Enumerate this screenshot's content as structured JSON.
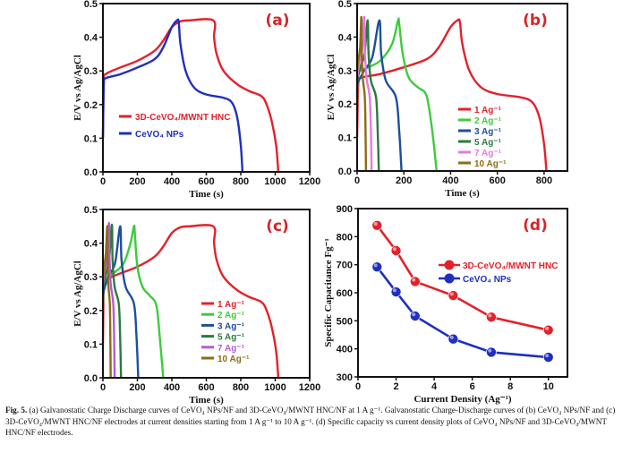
{
  "chart_data": [
    {
      "panel": "(a)",
      "type": "line",
      "xlabel": "Time (s)",
      "ylabel": "E/V vs Ag/AgCl",
      "xlim": [
        0,
        1200
      ],
      "ylim": [
        0,
        0.5
      ],
      "xticks": [
        0,
        200,
        400,
        600,
        800,
        1000,
        1200
      ],
      "yticks": [
        "0.0",
        "0.1",
        "0.2",
        "0.3",
        "0.4",
        "0.5"
      ],
      "legend": "center-left",
      "series": [
        {
          "name": "3D-CeVO₄/MWNT HNC",
          "color": "#e3212b",
          "points": [
            [
              0,
              0.1
            ],
            [
              5,
              0.27
            ],
            [
              15,
              0.29
            ],
            [
              100,
              0.31
            ],
            [
              200,
              0.33
            ],
            [
              300,
              0.36
            ],
            [
              350,
              0.39
            ],
            [
              400,
              0.43
            ],
            [
              450,
              0.447
            ],
            [
              500,
              0.45
            ],
            [
              640,
              0.45
            ],
            [
              645,
              0.4
            ],
            [
              660,
              0.35
            ],
            [
              700,
              0.3
            ],
            [
              780,
              0.26
            ],
            [
              850,
              0.24
            ],
            [
              920,
              0.225
            ],
            [
              950,
              0.2
            ],
            [
              980,
              0.15
            ],
            [
              1005,
              0.08
            ],
            [
              1018,
              0
            ]
          ]
        },
        {
          "name": "CeVO₄ NPs",
          "color": "#1f2fbf",
          "points": [
            [
              0,
              0.1
            ],
            [
              5,
              0.26
            ],
            [
              15,
              0.278
            ],
            [
              100,
              0.29
            ],
            [
              200,
              0.31
            ],
            [
              300,
              0.335
            ],
            [
              350,
              0.37
            ],
            [
              400,
              0.43
            ],
            [
              430,
              0.45
            ],
            [
              440,
              0.445
            ],
            [
              450,
              0.38
            ],
            [
              480,
              0.3
            ],
            [
              530,
              0.25
            ],
            [
              600,
              0.23
            ],
            [
              700,
              0.22
            ],
            [
              750,
              0.205
            ],
            [
              780,
              0.16
            ],
            [
              800,
              0.08
            ],
            [
              810,
              0
            ]
          ]
        }
      ]
    },
    {
      "panel": "(b)",
      "type": "line",
      "xlabel": "Time (s)",
      "ylabel": "E/V vs Ag/AgCl",
      "xlim": [
        0,
        900
      ],
      "ylim": [
        0,
        0.5
      ],
      "xticks": [
        0,
        200,
        400,
        600,
        800
      ],
      "yticks": [
        "0.0",
        "0.1",
        "0.2",
        "0.3",
        "0.4",
        "0.5"
      ],
      "legend": "bottom-right",
      "series": [
        {
          "name": "1 Ag⁻¹",
          "color": "#e3212b",
          "points": [
            [
              0,
              0.1
            ],
            [
              5,
              0.26
            ],
            [
              15,
              0.278
            ],
            [
              100,
              0.29
            ],
            [
              200,
              0.31
            ],
            [
              300,
              0.335
            ],
            [
              350,
              0.37
            ],
            [
              400,
              0.43
            ],
            [
              430,
              0.45
            ],
            [
              440,
              0.445
            ],
            [
              450,
              0.38
            ],
            [
              480,
              0.3
            ],
            [
              530,
              0.25
            ],
            [
              600,
              0.23
            ],
            [
              700,
              0.22
            ],
            [
              750,
              0.205
            ],
            [
              780,
              0.16
            ],
            [
              800,
              0.08
            ],
            [
              810,
              0
            ]
          ]
        },
        {
          "name": "2 Ag⁻¹",
          "color": "#3ccc3c",
          "points": [
            [
              0,
              0.2
            ],
            [
              5,
              0.29
            ],
            [
              50,
              0.31
            ],
            [
              100,
              0.33
            ],
            [
              150,
              0.38
            ],
            [
              175,
              0.45
            ],
            [
              180,
              0.44
            ],
            [
              195,
              0.35
            ],
            [
              220,
              0.28
            ],
            [
              260,
              0.25
            ],
            [
              290,
              0.235
            ],
            [
              305,
              0.2
            ],
            [
              325,
              0.1
            ],
            [
              340,
              0
            ]
          ]
        },
        {
          "name": "3 Ag⁻¹",
          "color": "#1d4f9c",
          "points": [
            [
              0,
              0.26
            ],
            [
              30,
              0.3
            ],
            [
              65,
              0.34
            ],
            [
              95,
              0.45
            ],
            [
              103,
              0.35
            ],
            [
              123,
              0.27
            ],
            [
              166,
              0.22
            ],
            [
              180,
              0.12
            ],
            [
              190,
              0
            ]
          ]
        },
        {
          "name": "5 Ag⁻¹",
          "color": "#2b7a40",
          "points": [
            [
              0,
              0.27
            ],
            [
              14,
              0.31
            ],
            [
              32,
              0.35
            ],
            [
              45,
              0.45
            ],
            [
              49,
              0.35
            ],
            [
              59,
              0.27
            ],
            [
              81,
              0.22
            ],
            [
              88,
              0.12
            ],
            [
              93,
              0
            ]
          ]
        },
        {
          "name": "7 Ag⁻¹",
          "color": "#e47ae4",
          "points": [
            [
              0,
              0.28
            ],
            [
              9,
              0.32
            ],
            [
              21,
              0.36
            ],
            [
              30,
              0.46
            ],
            [
              33,
              0.36
            ],
            [
              40,
              0.28
            ],
            [
              54,
              0.22
            ],
            [
              59,
              0.12
            ],
            [
              62,
              0
            ]
          ]
        },
        {
          "name": "10 Ag⁻¹",
          "color": "#8c6c14",
          "points": [
            [
              0,
              0.3
            ],
            [
              5,
              0.33
            ],
            [
              13,
              0.37
            ],
            [
              18,
              0.46
            ],
            [
              20,
              0.36
            ],
            [
              24,
              0.28
            ],
            [
              33,
              0.22
            ],
            [
              36,
              0.12
            ],
            [
              38,
              0
            ]
          ]
        }
      ]
    },
    {
      "panel": "(c)",
      "type": "line",
      "xlabel": "Time (s)",
      "ylabel": "E/V vs Ag/AgCl",
      "xlim": [
        0,
        1200
      ],
      "ylim": [
        0,
        0.5
      ],
      "xticks": [
        0,
        200,
        400,
        600,
        800,
        1000,
        1200
      ],
      "yticks": [
        "0.0",
        "0.1",
        "0.2",
        "0.3",
        "0.4",
        "0.5"
      ],
      "legend": "center-right",
      "series": [
        {
          "name": "1 Ag⁻¹",
          "color": "#e3212b",
          "points": [
            [
              0,
              0.1
            ],
            [
              5,
              0.27
            ],
            [
              15,
              0.29
            ],
            [
              100,
              0.31
            ],
            [
              200,
              0.33
            ],
            [
              300,
              0.36
            ],
            [
              350,
              0.39
            ],
            [
              400,
              0.43
            ],
            [
              450,
              0.447
            ],
            [
              500,
              0.45
            ],
            [
              640,
              0.45
            ],
            [
              645,
              0.4
            ],
            [
              660,
              0.35
            ],
            [
              700,
              0.3
            ],
            [
              780,
              0.26
            ],
            [
              850,
              0.24
            ],
            [
              920,
              0.225
            ],
            [
              950,
              0.2
            ],
            [
              980,
              0.15
            ],
            [
              1005,
              0.08
            ],
            [
              1018,
              0
            ]
          ]
        },
        {
          "name": "2 Ag⁻¹",
          "color": "#3ccc3c",
          "points": [
            [
              0,
              0.22
            ],
            [
              10,
              0.29
            ],
            [
              60,
              0.31
            ],
            [
              120,
              0.34
            ],
            [
              160,
              0.4
            ],
            [
              180,
              0.45
            ],
            [
              185,
              0.43
            ],
            [
              200,
              0.33
            ],
            [
              230,
              0.27
            ],
            [
              270,
              0.245
            ],
            [
              310,
              0.215
            ],
            [
              330,
              0.12
            ],
            [
              350,
              0
            ]
          ]
        },
        {
          "name": "3 Ag⁻¹",
          "color": "#1d4f9c",
          "points": [
            [
              0,
              0.25
            ],
            [
              30,
              0.3
            ],
            [
              70,
              0.34
            ],
            [
              100,
              0.45
            ],
            [
              108,
              0.35
            ],
            [
              132,
              0.27
            ],
            [
              180,
              0.22
            ],
            [
              195,
              0.12
            ],
            [
              205,
              0
            ]
          ]
        },
        {
          "name": "5 Ag⁻¹",
          "color": "#2b7a40",
          "points": [
            [
              0,
              0.27
            ],
            [
              16,
              0.31
            ],
            [
              36,
              0.35
            ],
            [
              52,
              0.455
            ],
            [
              56,
              0.35
            ],
            [
              68,
              0.27
            ],
            [
              92,
              0.22
            ],
            [
              100,
              0.12
            ],
            [
              105,
              0
            ]
          ]
        },
        {
          "name": "7 Ag⁻¹",
          "color": "#b45ad8",
          "points": [
            [
              0,
              0.28
            ],
            [
              10,
              0.32
            ],
            [
              25,
              0.36
            ],
            [
              35,
              0.46
            ],
            [
              38,
              0.36
            ],
            [
              45,
              0.28
            ],
            [
              60,
              0.22
            ],
            [
              65,
              0.12
            ],
            [
              68,
              0
            ]
          ]
        },
        {
          "name": "10 Ag⁻¹",
          "color": "#8c6c14",
          "points": [
            [
              0,
              0.3
            ],
            [
              7,
              0.33
            ],
            [
              17,
              0.37
            ],
            [
              25,
              0.45
            ],
            [
              27,
              0.36
            ],
            [
              31,
              0.28
            ],
            [
              40,
              0.22
            ],
            [
              43,
              0.12
            ],
            [
              45,
              0
            ]
          ]
        }
      ]
    },
    {
      "panel": "(d)",
      "type": "line",
      "xlabel": "Current Density (Ag⁻¹)",
      "ylabel": "Specific Capacitance Fg⁻¹",
      "xlim": [
        0,
        11
      ],
      "ylim": [
        300,
        900
      ],
      "xticks": [
        0,
        2,
        4,
        6,
        8,
        10
      ],
      "yticks": [
        "300",
        "400",
        "500",
        "600",
        "700",
        "800",
        "900"
      ],
      "legend": "center-right",
      "markers": true,
      "series": [
        {
          "name": "3D-CeVO₄/MWNT HNC",
          "color": "#e3212b",
          "points": [
            [
              1,
              840
            ],
            [
              2,
              750
            ],
            [
              3,
              640
            ],
            [
              5,
              590
            ],
            [
              7,
              513
            ],
            [
              10,
              467
            ]
          ]
        },
        {
          "name": "CeVO₄ NPs",
          "color": "#1f2fbf",
          "points": [
            [
              1,
              692
            ],
            [
              2,
              603
            ],
            [
              3,
              517
            ],
            [
              5,
              435
            ],
            [
              7,
              388
            ],
            [
              10,
              370
            ]
          ]
        }
      ]
    }
  ],
  "caption": {
    "label": "Fig. 5.",
    "text": "(a) Galvanostatic Charge Discharge curves of CeVO₄ NPs/NF and 3D-CeVO₄/MWNT HNC/NF at 1 A g⁻¹. Galvanostatic Charge-Discharge curves of (b) CeVO₄ NPs/NF and (c) 3D-CeVO₄/MWNT HNC/NF electrodes at current densities starting from 1 A g⁻¹ to 10 A g⁻¹. (d) Specific capacity vs current density plots of CeVO₄ NPs/NF and 3D-CeVO₄/MWNT HNC/NF electrodes."
  }
}
